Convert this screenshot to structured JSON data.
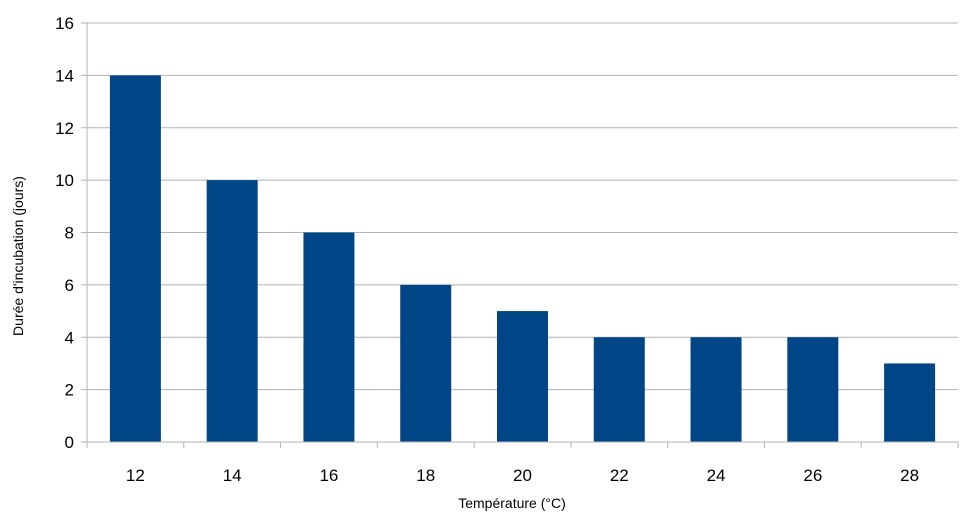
{
  "chart_data": {
    "type": "bar",
    "categories": [
      "12",
      "14",
      "16",
      "18",
      "20",
      "22",
      "24",
      "26",
      "28"
    ],
    "values": [
      14,
      10,
      8,
      6,
      5,
      4,
      4,
      4,
      3
    ],
    "xlabel": "Température (°C)",
    "ylabel": "Durée d'incubation (jours)",
    "ylim": [
      0,
      16
    ],
    "yticks": [
      0,
      2,
      4,
      6,
      8,
      10,
      12,
      14,
      16
    ],
    "grid": true,
    "bar_color": "#004586",
    "grid_color": "#b3b3b3"
  }
}
